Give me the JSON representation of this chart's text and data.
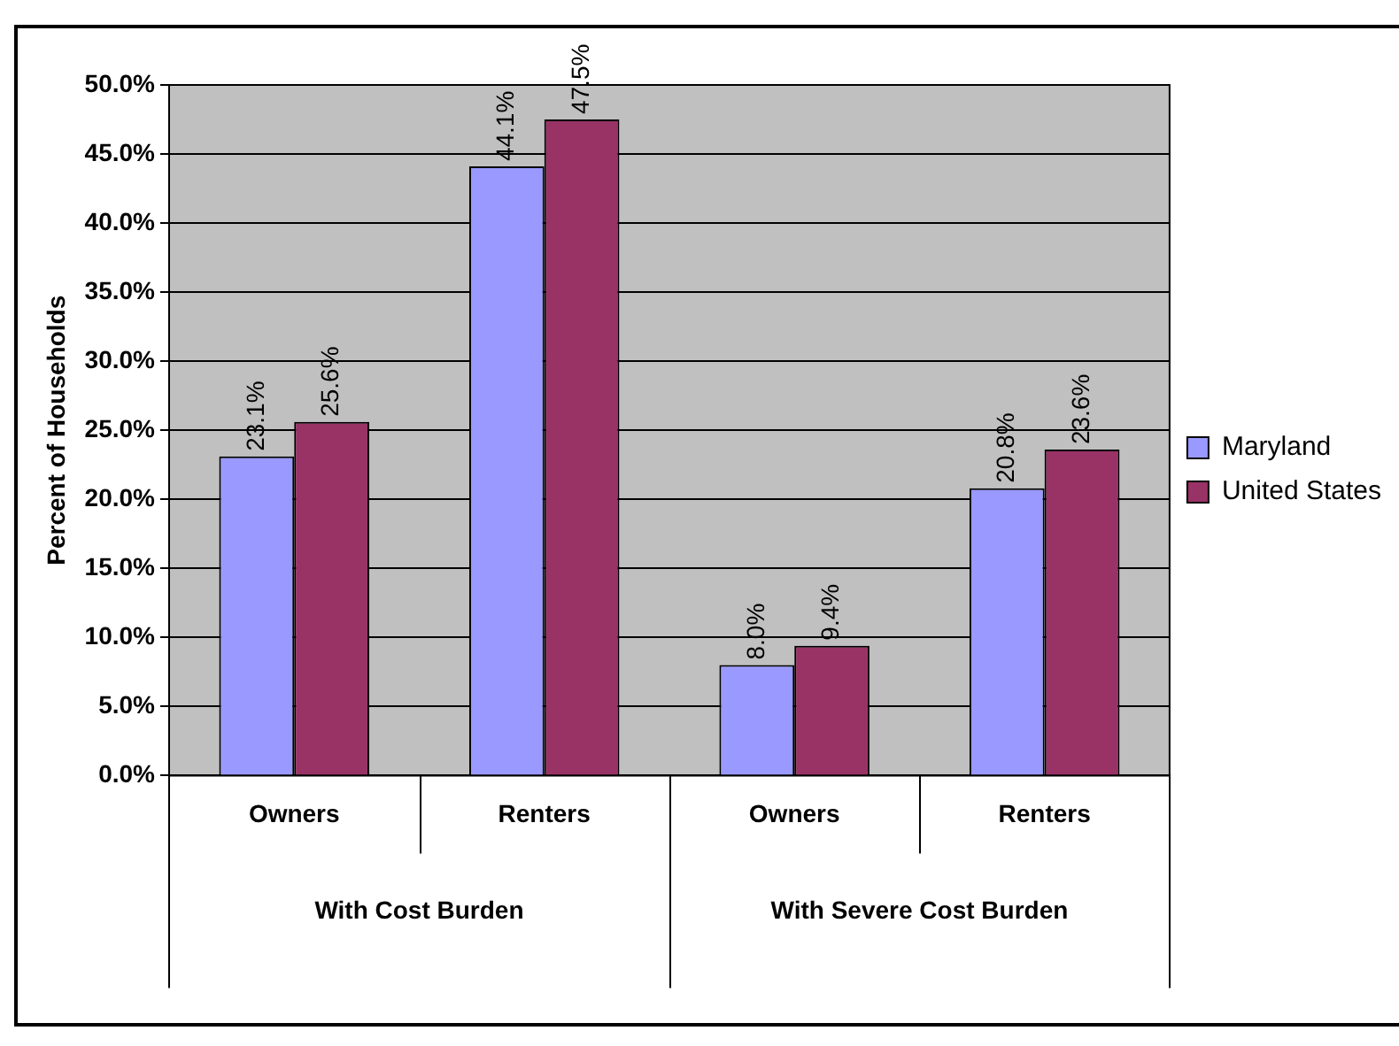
{
  "chart_data": {
    "type": "bar",
    "ylabel": "Percent of Households",
    "categories": [
      "Owners",
      "Renters",
      "Owners",
      "Renters"
    ],
    "annotations": [
      "With Cost Burden",
      "With Severe Cost Burden"
    ],
    "series": [
      {
        "name": "Maryland",
        "color": "#9999ff",
        "values": [
          23.1,
          44.1,
          8.0,
          20.8
        ],
        "value_labels": [
          "23.1%",
          "44.1%",
          "8.0%",
          "20.8%"
        ]
      },
      {
        "name": "United States",
        "color": "#993366",
        "values": [
          25.6,
          47.5,
          9.4,
          23.6
        ],
        "value_labels": [
          "25.6%",
          "47.5%",
          "9.4%",
          "23.6%"
        ]
      }
    ],
    "ylim": [
      0,
      50
    ],
    "yticks": [
      {
        "value": 0,
        "label": "0.0%"
      },
      {
        "value": 5,
        "label": "5.0%"
      },
      {
        "value": 10,
        "label": "10.0%"
      },
      {
        "value": 15,
        "label": "15.0%"
      },
      {
        "value": 20,
        "label": "20.0%"
      },
      {
        "value": 25,
        "label": "25.0%"
      },
      {
        "value": 30,
        "label": "30.0%"
      },
      {
        "value": 35,
        "label": "35.0%"
      },
      {
        "value": 40,
        "label": "40.0%"
      },
      {
        "value": 45,
        "label": "45.0%"
      },
      {
        "value": 50,
        "label": "50.0%"
      }
    ],
    "grid": "y",
    "legend": "right"
  }
}
